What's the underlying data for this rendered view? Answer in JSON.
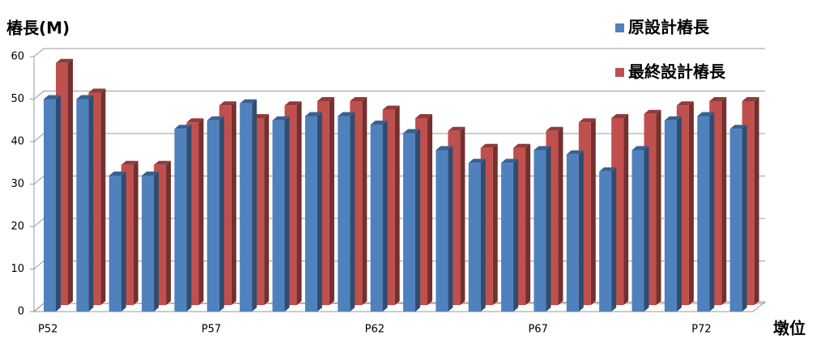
{
  "chart_data": {
    "type": "bar3d",
    "y_label": "樁長(M)",
    "x_label": "墩位",
    "categories": [
      "P52",
      null,
      null,
      null,
      null,
      "P57",
      null,
      null,
      null,
      null,
      "P62",
      null,
      null,
      null,
      null,
      "P67",
      null,
      null,
      null,
      null,
      "P72",
      null
    ],
    "series": [
      {
        "name": "原設計樁長",
        "color": "#4f81bd",
        "values": [
          50,
          50,
          32,
          32,
          43,
          45,
          49,
          45,
          46,
          46,
          44,
          42,
          38,
          35,
          35,
          38,
          37,
          33,
          38,
          45,
          46,
          43
        ]
      },
      {
        "name": "最終設計樁長",
        "color": "#c0504d",
        "values": [
          57,
          50,
          33,
          33,
          43,
          47,
          44,
          47,
          48,
          48,
          46,
          44,
          41,
          37,
          37,
          41,
          43,
          44,
          45,
          47,
          48,
          48
        ]
      }
    ],
    "ylim": [
      0,
      60
    ],
    "yticks": [
      0,
      10,
      20,
      30,
      40,
      50,
      60
    ],
    "grid": true
  }
}
